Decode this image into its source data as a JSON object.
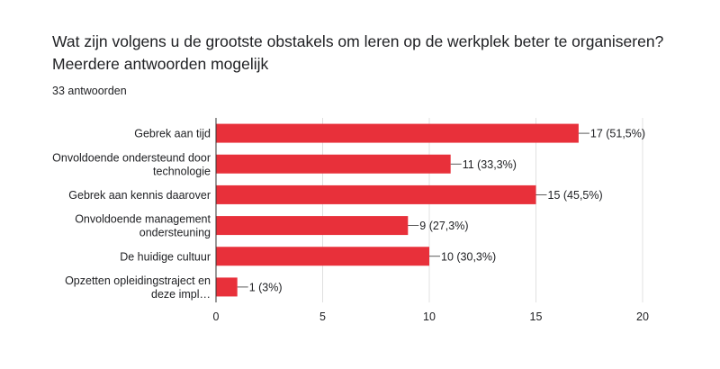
{
  "question": {
    "line1": "Wat zijn volgens u de grootste obstakels om leren op de werkplek beter te organiseren?",
    "line2": "Meerdere antwoorden mogelijk"
  },
  "responses": "33 antwoorden",
  "chart_data": {
    "type": "bar",
    "orientation": "horizontal",
    "bar_color": "#e8303a",
    "categories": [
      [
        "Gebrek aan tijd"
      ],
      [
        "Onvoldoende ondersteund door",
        "technologie"
      ],
      [
        "Gebrek aan kennis daarover"
      ],
      [
        "Onvoldoende management",
        "ondersteuning"
      ],
      [
        "De huidige cultuur"
      ],
      [
        "Opzetten opleidingstraject en",
        "deze impl…"
      ]
    ],
    "values": [
      17,
      11,
      15,
      9,
      10,
      1
    ],
    "data_labels": [
      "17 (51,5%)",
      "11 (33,3%)",
      "15 (45,5%)",
      "9 (27,3%)",
      "10 (30,3%)",
      "1 (3%)"
    ],
    "xlim": [
      0,
      20
    ],
    "xticks": [
      0,
      5,
      10,
      15,
      20
    ],
    "grid": true
  }
}
